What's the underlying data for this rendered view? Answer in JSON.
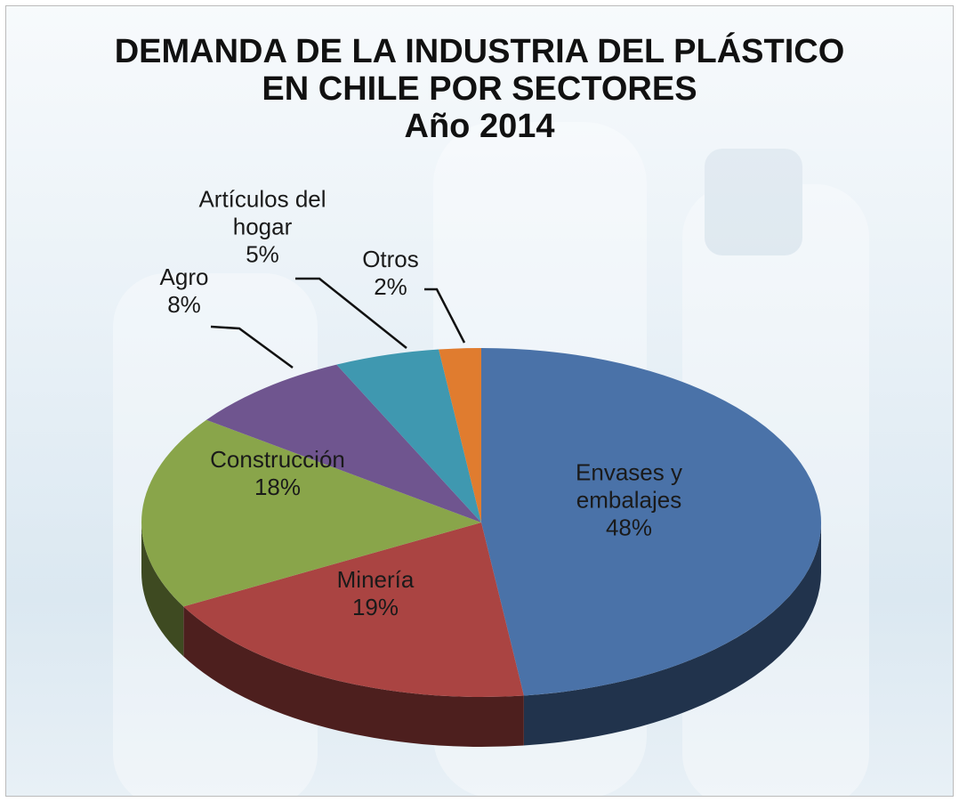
{
  "chart_data": {
    "type": "pie3d",
    "title": "DEMANDA DE LA INDUSTRIA DEL PLÁSTICO EN CHILE POR SECTORES",
    "subtitle": "Año 2014",
    "categories": [
      "Envases y embalajes",
      "Minería",
      "Construcción",
      "Agro",
      "Artículos del hogar",
      "Otros"
    ],
    "values": [
      48,
      19,
      18,
      8,
      5,
      2
    ],
    "value_labels": [
      "48%",
      "19%",
      "18%",
      "8%",
      "5%",
      "2%"
    ],
    "colors": [
      "#4a72a8",
      "#aa4442",
      "#89a54a",
      "#6f558f",
      "#3f98b0",
      "#e07c2f"
    ]
  }
}
